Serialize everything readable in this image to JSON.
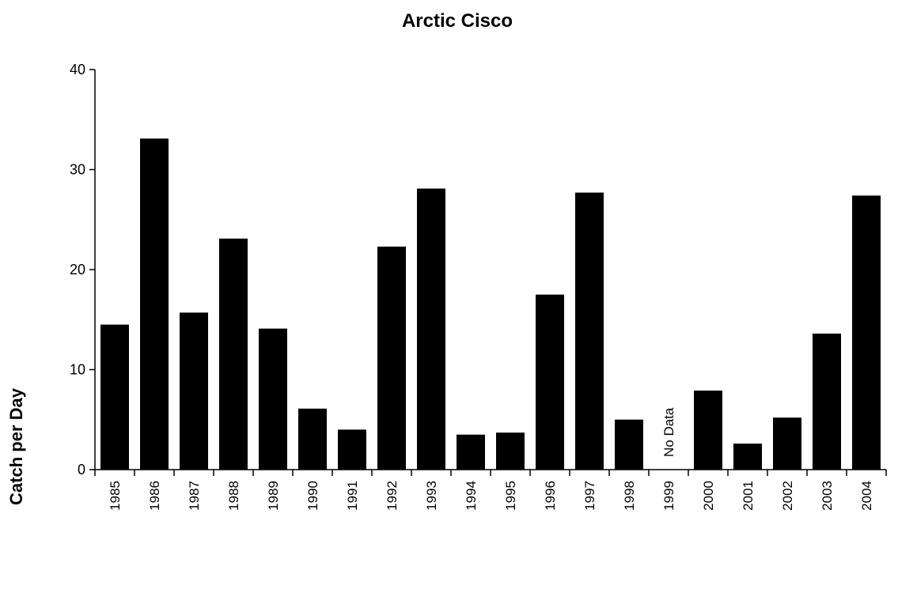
{
  "chart_data": {
    "type": "bar",
    "title": "Arctic Cisco",
    "xlabel": "",
    "ylabel": "Catch per Day",
    "ylim": [
      0,
      40
    ],
    "yticks": [
      "0",
      "10",
      "20",
      "30",
      "40"
    ],
    "grid": false,
    "legend": "none",
    "bar_color": "#000000",
    "categories": [
      "1985",
      "1986",
      "1987",
      "1988",
      "1989",
      "1990",
      "1991",
      "1992",
      "1993",
      "1994",
      "1995",
      "1996",
      "1997",
      "1998",
      "1999",
      "2000",
      "2001",
      "2002",
      "2003",
      "2004"
    ],
    "values": [
      14.5,
      33.1,
      15.7,
      23.1,
      14.1,
      6.1,
      4.0,
      22.3,
      28.1,
      3.5,
      3.7,
      17.5,
      27.7,
      5.0,
      null,
      7.9,
      2.6,
      5.2,
      13.6,
      27.4
    ],
    "annotations": [
      {
        "category": "1999",
        "text": "No Data"
      }
    ]
  }
}
